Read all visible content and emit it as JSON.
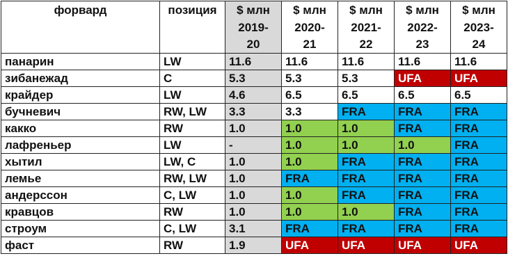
{
  "headers": {
    "name": "форвард",
    "position": "позиция",
    "unit": "$ млн",
    "seasons": [
      [
        "2019-",
        "20"
      ],
      [
        "2020-",
        "21"
      ],
      [
        "2021-",
        "22"
      ],
      [
        "2022-",
        "23"
      ],
      [
        "2023-",
        "24"
      ]
    ]
  },
  "colors": {
    "current_season": "#d9d9d9",
    "rfa_contract": "#92d050",
    "fra": "#00b0f0",
    "ufa": "#c00000"
  },
  "rows": [
    {
      "name": "панарин",
      "position": "LW",
      "values": [
        "11.6",
        "11.6",
        "11.6",
        "11.6",
        "11.6"
      ],
      "styles": [
        "gray",
        "",
        "",
        "",
        ""
      ]
    },
    {
      "name": "зибанежад",
      "position": "C",
      "values": [
        "5.3",
        "5.3",
        "5.3",
        "UFA",
        "UFA"
      ],
      "styles": [
        "gray",
        "",
        "",
        "red",
        "red"
      ]
    },
    {
      "name": "крайдер",
      "position": "LW",
      "values": [
        "4.6",
        "6.5",
        "6.5",
        "6.5",
        "6.5"
      ],
      "styles": [
        "gray",
        "",
        "",
        "",
        ""
      ]
    },
    {
      "name": "бучневич",
      "position": "RW, LW",
      "values": [
        "3.3",
        "3.3",
        "FRA",
        "FRA",
        "FRA"
      ],
      "styles": [
        "gray",
        "",
        "blue",
        "blue",
        "blue"
      ]
    },
    {
      "name": "какко",
      "position": "RW",
      "values": [
        "1.0",
        "1.0",
        "1.0",
        "FRA",
        "FRA"
      ],
      "styles": [
        "gray",
        "green",
        "green",
        "blue",
        "blue"
      ]
    },
    {
      "name": "лафреньер",
      "position": "LW",
      "values": [
        "-",
        "1.0",
        "1.0",
        "1.0",
        "FRA"
      ],
      "styles": [
        "gray",
        "green",
        "green",
        "green",
        "blue"
      ]
    },
    {
      "name": "хытил",
      "position": "LW, C",
      "values": [
        "1.0",
        "1.0",
        "FRA",
        "FRA",
        "FRA"
      ],
      "styles": [
        "gray",
        "green",
        "blue",
        "blue",
        "blue"
      ]
    },
    {
      "name": "лемье",
      "position": "RW, LW",
      "values": [
        "1.0",
        "FRA",
        "FRA",
        "FRA",
        "FRA"
      ],
      "styles": [
        "gray",
        "blue",
        "blue",
        "blue",
        "blue"
      ]
    },
    {
      "name": "андерссон",
      "position": "C, LW",
      "values": [
        "1.0",
        "1.0",
        "FRA",
        "FRA",
        "FRA"
      ],
      "styles": [
        "gray",
        "green",
        "blue",
        "blue",
        "blue"
      ]
    },
    {
      "name": "кравцов",
      "position": "RW",
      "values": [
        "1.0",
        "1.0",
        "1.0",
        "FRA",
        "FRA"
      ],
      "styles": [
        "gray",
        "green",
        "green",
        "blue",
        "blue"
      ]
    },
    {
      "name": "строум",
      "position": "C, LW",
      "values": [
        "3.1",
        "FRA",
        "FRA",
        "FRA",
        "FRA"
      ],
      "styles": [
        "gray",
        "blue",
        "blue",
        "blue",
        "blue"
      ]
    },
    {
      "name": "фаст",
      "position": "RW",
      "values": [
        "1.9",
        "UFA",
        "UFA",
        "UFA",
        "UFA"
      ],
      "styles": [
        "gray",
        "red",
        "red",
        "red",
        "red"
      ]
    }
  ]
}
